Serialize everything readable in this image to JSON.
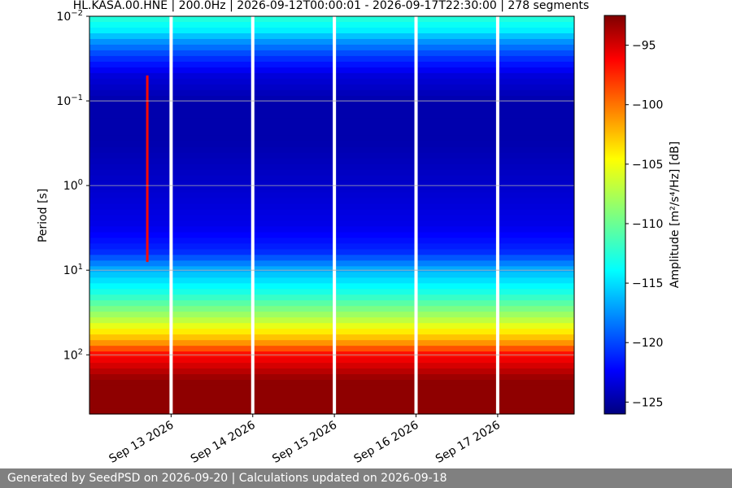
{
  "chart_data": {
    "type": "heatmap",
    "title": "HL.KASA.00.HNE | 200.0Hz | 2026-09-12T00:00:01 - 2026-09-17T22:30:00 | 278 segments",
    "xlabel": "",
    "ylabel": "Period [s]",
    "colorbar_label": "Amplitude [m²/s⁴/Hz] [dB]",
    "colorbar_ticks": [
      -95,
      -100,
      -105,
      -110,
      -115,
      -120,
      -125
    ],
    "colorbar_range": [
      -126,
      -92.5
    ],
    "colormap": "jet",
    "x_tick_labels": [
      "Sep 13 2026",
      "Sep 14 2026",
      "Sep 15 2026",
      "Sep 16 2026",
      "Sep 17 2026"
    ],
    "x_range": [
      "2026-09-12T00:00:01",
      "2026-09-17T22:30:00"
    ],
    "y_scale": "log",
    "y_inverted": true,
    "y_range": [
      0.01,
      500
    ],
    "y_ticks": [
      0.01,
      0.1,
      1,
      10,
      100
    ],
    "y_tick_labels": [
      {
        "base": "10",
        "exp": "−2"
      },
      {
        "base": "10",
        "exp": "−1"
      },
      {
        "base": "10",
        "exp": "0"
      },
      {
        "base": "10",
        "exp": "1"
      },
      {
        "base": "10",
        "exp": "2"
      }
    ],
    "grid": true,
    "data_gaps": [
      "2026-09-13T00:00",
      "2026-09-14T00:00",
      "2026-09-15T00:00",
      "2026-09-16T00:00",
      "2026-09-17T00:00"
    ],
    "period_amplitude_profile": [
      {
        "period": 0.01,
        "amplitude_db": -112
      },
      {
        "period": 0.015,
        "amplitude_db": -114
      },
      {
        "period": 0.02,
        "amplitude_db": -117
      },
      {
        "period": 0.03,
        "amplitude_db": -120
      },
      {
        "period": 0.05,
        "amplitude_db": -123
      },
      {
        "period": 0.1,
        "amplitude_db": -124.5
      },
      {
        "period": 0.3,
        "amplitude_db": -124.5
      },
      {
        "period": 1,
        "amplitude_db": -123.5
      },
      {
        "period": 3,
        "amplitude_db": -122.5
      },
      {
        "period": 6,
        "amplitude_db": -120.5
      },
      {
        "period": 10,
        "amplitude_db": -116
      },
      {
        "period": 20,
        "amplitude_db": -112
      },
      {
        "period": 40,
        "amplitude_db": -107
      },
      {
        "period": 70,
        "amplitude_db": -102
      },
      {
        "period": 100,
        "amplitude_db": -97
      },
      {
        "period": 200,
        "amplitude_db": -93
      },
      {
        "period": 500,
        "amplitude_db": -93
      }
    ],
    "events": [
      {
        "time": "2026-09-12T17:00",
        "period_range": [
          0.05,
          8
        ],
        "peak_amplitude_db": -97
      }
    ]
  },
  "footer": {
    "text": "Generated by SeedPSD on 2026-09-20 | Calculations updated on 2026-09-18"
  }
}
